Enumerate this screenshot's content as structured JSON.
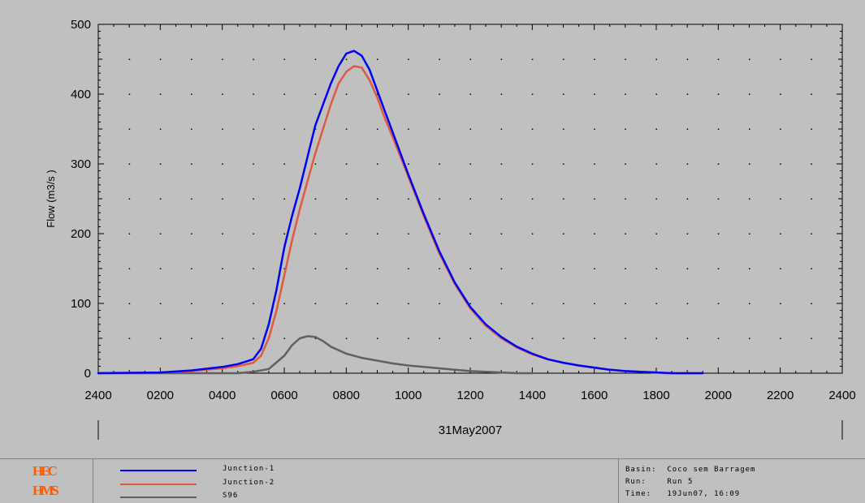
{
  "chart_data": {
    "type": "line",
    "title": "",
    "xlabel": "31May2007",
    "ylabel": "Flow (m3/s   )",
    "ylim": [
      0,
      500
    ],
    "xlim_hours": [
      0,
      24
    ],
    "grid": true,
    "x_tick_labels": [
      "2400",
      "0200",
      "0400",
      "0600",
      "0800",
      "1000",
      "1200",
      "1400",
      "1600",
      "1800",
      "2000",
      "2200",
      "2400"
    ],
    "y_tick_labels": [
      "0",
      "100",
      "200",
      "300",
      "400",
      "500"
    ],
    "series": [
      {
        "name": "Junction-1",
        "color": "#0000ff",
        "x": [
          0,
          2,
          3,
          4,
          4.5,
          5,
          5.25,
          5.5,
          5.75,
          6,
          6.25,
          6.5,
          6.75,
          7,
          7.25,
          7.5,
          7.75,
          8,
          8.25,
          8.5,
          8.75,
          9,
          9.25,
          9.5,
          9.75,
          10,
          10.5,
          11,
          11.5,
          12,
          12.5,
          13,
          13.5,
          14,
          14.5,
          15,
          15.5,
          16,
          16.5,
          17,
          17.5,
          18,
          18.5,
          19,
          19.5
        ],
        "y": [
          0,
          1,
          4,
          9,
          13,
          20,
          35,
          70,
          120,
          180,
          225,
          265,
          310,
          355,
          385,
          415,
          440,
          458,
          462,
          455,
          435,
          405,
          375,
          345,
          315,
          285,
          228,
          175,
          130,
          95,
          70,
          52,
          38,
          28,
          20,
          15,
          11,
          8,
          5,
          3,
          2,
          1,
          0,
          0,
          0
        ]
      },
      {
        "name": "Junction-2",
        "color": "#e05a40",
        "x": [
          0,
          2,
          3,
          4,
          4.5,
          5,
          5.25,
          5.5,
          5.75,
          6,
          6.25,
          6.5,
          6.75,
          7,
          7.25,
          7.5,
          7.75,
          8,
          8.25,
          8.5,
          8.75,
          9,
          9.25,
          9.5,
          9.75,
          10,
          10.5,
          11,
          11.5,
          12,
          12.5,
          13,
          13.5,
          14,
          14.5,
          15,
          15.5,
          16,
          16.5,
          17,
          17.5,
          18,
          18.5,
          19,
          19.5
        ],
        "y": [
          0,
          1,
          3,
          7,
          10,
          15,
          25,
          50,
          90,
          140,
          190,
          235,
          275,
          315,
          350,
          385,
          415,
          432,
          440,
          438,
          420,
          395,
          365,
          338,
          310,
          282,
          225,
          172,
          128,
          93,
          68,
          50,
          37,
          27,
          20,
          15,
          11,
          8,
          5,
          3,
          2,
          1,
          0,
          0,
          0
        ]
      },
      {
        "name": "S96",
        "color": "#606060",
        "x": [
          0,
          4.5,
          5,
          5.5,
          6,
          6.25,
          6.5,
          6.75,
          7,
          7.25,
          7.5,
          8,
          8.5,
          9,
          9.5,
          10,
          10.5,
          11,
          11.5,
          12,
          12.5,
          13,
          13.5,
          14
        ],
        "y": [
          0,
          0,
          2,
          6,
          25,
          40,
          50,
          53,
          52,
          46,
          38,
          28,
          22,
          18,
          14,
          11,
          9,
          7,
          5,
          3,
          2,
          1,
          0,
          0
        ]
      }
    ]
  },
  "legend": {
    "items": [
      {
        "label": "Junction-1",
        "color": "#0000ff"
      },
      {
        "label": "Junction-2",
        "color": "#e05a40"
      },
      {
        "label": "S96",
        "color": "#606060"
      }
    ]
  },
  "logo": {
    "line1": "HEC",
    "line2": "HMS"
  },
  "info": {
    "basin": "Basin:  Coco sem Barragem",
    "run": "Run:    Run 5",
    "time": "Time:   19Jun07, 16:09"
  }
}
